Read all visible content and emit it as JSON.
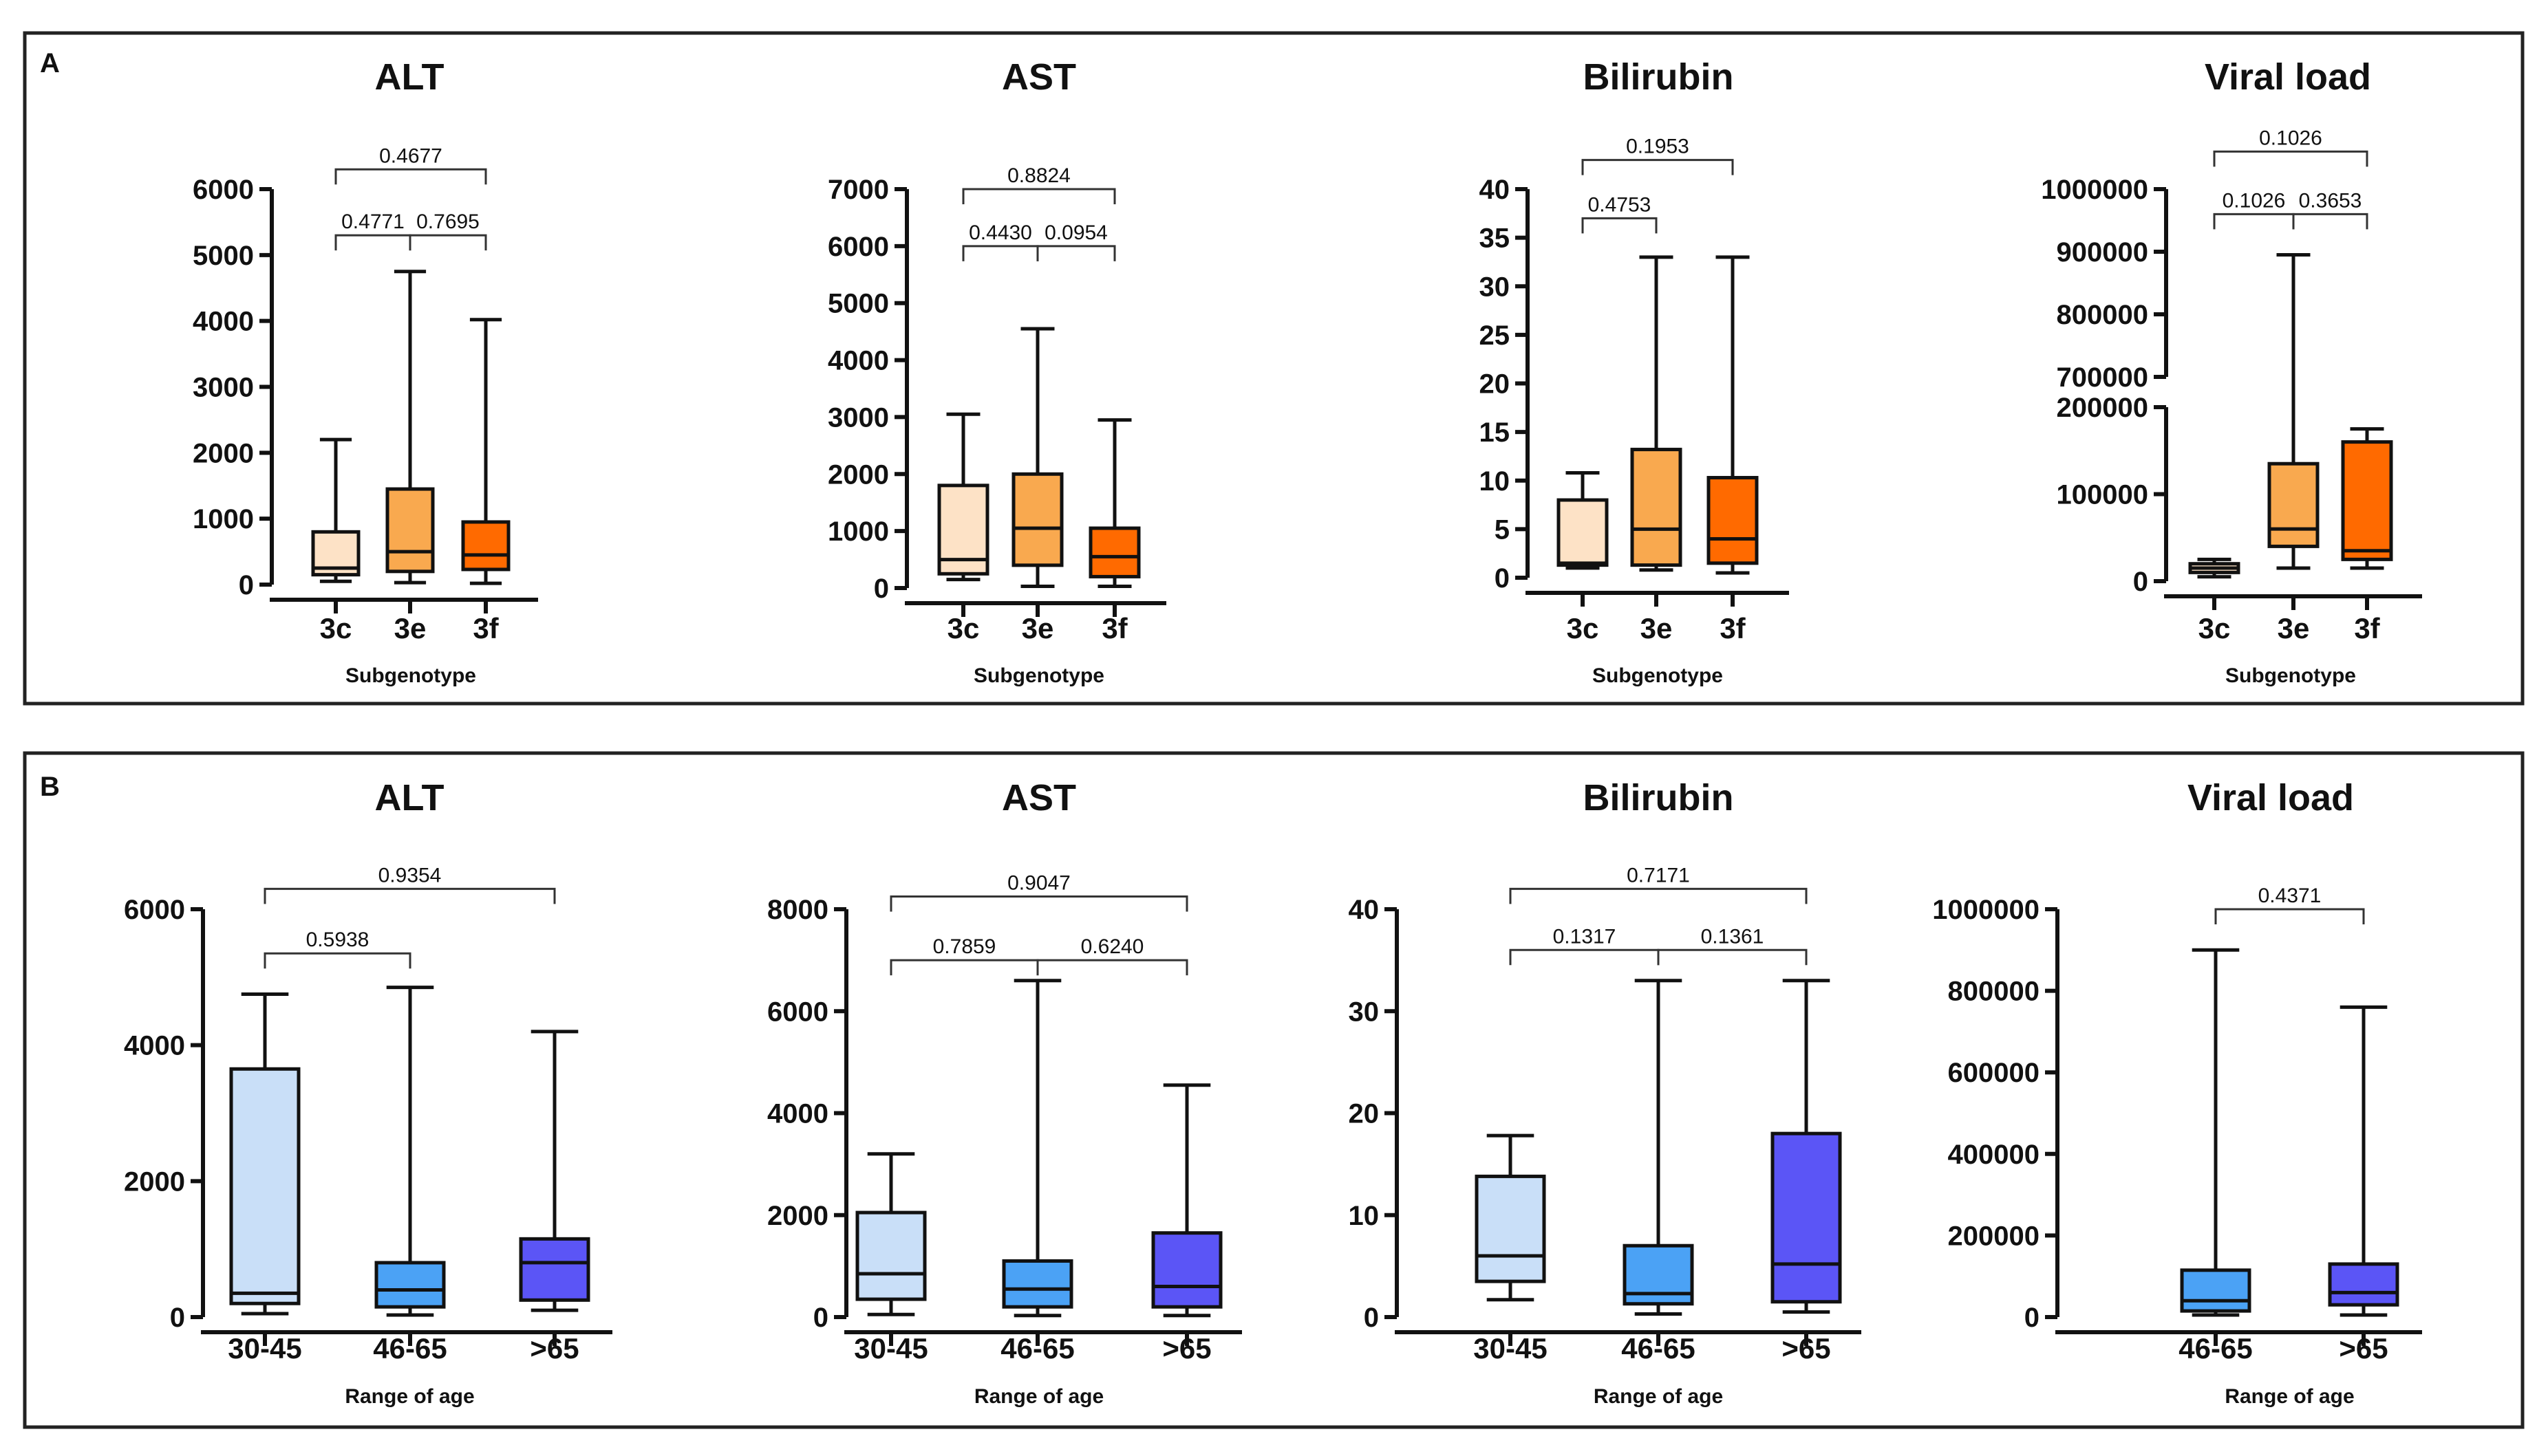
{
  "panels": [
    {
      "label": "A"
    },
    {
      "label": "B"
    }
  ],
  "chart_data": [
    {
      "panel": "A",
      "type": "box",
      "title": "ALT",
      "xlabel": "Subgenotype",
      "ylabel": "",
      "ylim": [
        0,
        6000
      ],
      "yticks": [
        0,
        1000,
        2000,
        3000,
        4000,
        5000,
        6000
      ],
      "yticklabels": [
        "0",
        "1000",
        "2000",
        "3000",
        "4000",
        "5000",
        "6000"
      ],
      "categories": [
        "3c",
        "3e",
        "3f"
      ],
      "colors": [
        "#FDE2C6",
        "#F9A94F",
        "#FF6A00"
      ],
      "boxes": [
        {
          "min": 50,
          "q1": 150,
          "median": 250,
          "q3": 800,
          "max": 2200
        },
        {
          "min": 30,
          "q1": 200,
          "median": 500,
          "q3": 1450,
          "max": 4750
        },
        {
          "min": 20,
          "q1": 230,
          "median": 450,
          "q3": 950,
          "max": 4020
        }
      ],
      "comparisons": [
        {
          "pair": [
            0,
            2
          ],
          "p": "0.4677",
          "value": 6300
        },
        {
          "pair": [
            0,
            1
          ],
          "p": "0.4771",
          "value": 5300
        },
        {
          "pair": [
            1,
            2
          ],
          "p": "0.7695",
          "value": 5300
        }
      ]
    },
    {
      "panel": "A",
      "type": "box",
      "title": "AST",
      "xlabel": "Subgenotype",
      "ylabel": "",
      "ylim": [
        0,
        7000
      ],
      "yticks": [
        0,
        1000,
        2000,
        3000,
        4000,
        5000,
        6000,
        7000
      ],
      "yticklabels": [
        "0",
        "1000",
        "2000",
        "3000",
        "4000",
        "5000",
        "6000",
        "7000"
      ],
      "categories": [
        "3c",
        "3e",
        "3f"
      ],
      "colors": [
        "#FDE2C6",
        "#F9A94F",
        "#FF6A00"
      ],
      "boxes": [
        {
          "min": 150,
          "q1": 250,
          "median": 500,
          "q3": 1800,
          "max": 3050
        },
        {
          "min": 30,
          "q1": 400,
          "median": 1050,
          "q3": 2000,
          "max": 4550
        },
        {
          "min": 30,
          "q1": 200,
          "median": 550,
          "q3": 1050,
          "max": 2950
        }
      ],
      "comparisons": [
        {
          "pair": [
            0,
            2
          ],
          "p": "0.8824",
          "value": 7000
        },
        {
          "pair": [
            0,
            1
          ],
          "p": "0.4430",
          "value": 6000
        },
        {
          "pair": [
            1,
            2
          ],
          "p": "0.0954",
          "value": 6000
        }
      ]
    },
    {
      "panel": "A",
      "type": "box",
      "title": "Bilirubin",
      "xlabel": "Subgenotype",
      "ylabel": "",
      "ylim": [
        0,
        40
      ],
      "yticks": [
        0,
        5,
        10,
        15,
        20,
        25,
        30,
        35,
        40
      ],
      "yticklabels": [
        "0",
        "5",
        "10",
        "15",
        "20",
        "25",
        "30",
        "35",
        "40"
      ],
      "categories": [
        "3c",
        "3e",
        "3f"
      ],
      "colors": [
        "#FDE2C6",
        "#F9A94F",
        "#FF6A00"
      ],
      "boxes": [
        {
          "min": 1,
          "q1": 1.3,
          "median": 1.5,
          "q3": 8,
          "max": 10.8
        },
        {
          "min": 0.8,
          "q1": 1.3,
          "median": 5,
          "q3": 13.2,
          "max": 33
        },
        {
          "min": 0.5,
          "q1": 1.5,
          "median": 4,
          "q3": 10.3,
          "max": 33
        }
      ],
      "comparisons": [
        {
          "pair": [
            0,
            2
          ],
          "p": "0.1953",
          "value": 43
        },
        {
          "pair": [
            0,
            1
          ],
          "p": "0.4753",
          "value": 37
        }
      ]
    },
    {
      "panel": "A",
      "type": "box",
      "title": "Viral load",
      "xlabel": "Subgenotype",
      "ylabel": "",
      "yaxis_break": {
        "lower": [
          0,
          200000
        ],
        "upper": [
          700000,
          1000000
        ]
      },
      "yticks": [
        0,
        100000,
        200000,
        700000,
        800000,
        900000,
        1000000
      ],
      "yticklabels": [
        "0",
        "100000",
        "200000",
        "700000",
        "800000",
        "900000",
        "1000000"
      ],
      "categories": [
        "3c",
        "3e",
        "3f"
      ],
      "colors": [
        "#FDE2C6",
        "#F9A94F",
        "#FF6A00"
      ],
      "boxes": [
        {
          "min": 5000,
          "q1": 10000,
          "median": 15000,
          "q3": 20000,
          "max": 25000
        },
        {
          "min": 15000,
          "q1": 40000,
          "median": 60000,
          "q3": 135000,
          "max": 895000
        },
        {
          "min": 15000,
          "q1": 25000,
          "median": 35000,
          "q3": 160000,
          "max": 175000
        }
      ],
      "comparisons": [
        {
          "pair": [
            0,
            2
          ],
          "p": "0.1026",
          "value": 1060000
        },
        {
          "pair": [
            0,
            1
          ],
          "p": "0.1026",
          "value": 960000
        },
        {
          "pair": [
            1,
            2
          ],
          "p": "0.3653",
          "value": 960000
        }
      ]
    },
    {
      "panel": "B",
      "type": "box",
      "title": "ALT",
      "xlabel": "Range of age",
      "ylabel": "",
      "ylim": [
        0,
        6000
      ],
      "yticks": [
        0,
        2000,
        4000,
        6000
      ],
      "yticklabels": [
        "0",
        "2000",
        "4000",
        "6000"
      ],
      "categories": [
        "30-45",
        "46-65",
        ">65"
      ],
      "colors": [
        "#C9DFF8",
        "#4BA2F5",
        "#5B55F6"
      ],
      "boxes": [
        {
          "min": 50,
          "q1": 200,
          "median": 350,
          "q3": 3650,
          "max": 4750
        },
        {
          "min": 30,
          "q1": 150,
          "median": 400,
          "q3": 800,
          "max": 4850
        },
        {
          "min": 100,
          "q1": 250,
          "median": 800,
          "q3": 1150,
          "max": 4200
        }
      ],
      "comparisons": [
        {
          "pair": [
            0,
            2
          ],
          "p": "0.9354",
          "value": 6300
        },
        {
          "pair": [
            0,
            1
          ],
          "p": "0.5938",
          "value": 5350
        }
      ]
    },
    {
      "panel": "B",
      "type": "box",
      "title": "AST",
      "xlabel": "Range of age",
      "ylabel": "",
      "ylim": [
        0,
        8000
      ],
      "yticks": [
        0,
        2000,
        4000,
        6000,
        8000
      ],
      "yticklabels": [
        "0",
        "2000",
        "4000",
        "6000",
        "8000"
      ],
      "categories": [
        "30-45",
        "46-65",
        ">65"
      ],
      "colors": [
        "#C9DFF8",
        "#4BA2F5",
        "#5B55F6"
      ],
      "boxes": [
        {
          "min": 50,
          "q1": 350,
          "median": 850,
          "q3": 2050,
          "max": 3200
        },
        {
          "min": 30,
          "q1": 200,
          "median": 550,
          "q3": 1100,
          "max": 6600
        },
        {
          "min": 30,
          "q1": 200,
          "median": 600,
          "q3": 1650,
          "max": 4550
        }
      ],
      "comparisons": [
        {
          "pair": [
            0,
            2
          ],
          "p": "0.9047",
          "value": 8250
        },
        {
          "pair": [
            0,
            1
          ],
          "p": "0.7859",
          "value": 7000
        },
        {
          "pair": [
            1,
            2
          ],
          "p": "0.6240",
          "value": 7000
        }
      ]
    },
    {
      "panel": "B",
      "type": "box",
      "title": "Bilirubin",
      "xlabel": "Range of age",
      "ylabel": "",
      "ylim": [
        0,
        40
      ],
      "yticks": [
        0,
        10,
        20,
        30,
        40
      ],
      "yticklabels": [
        "0",
        "10",
        "20",
        "30",
        "40"
      ],
      "categories": [
        "30-45",
        "46-65",
        ">65"
      ],
      "colors": [
        "#C9DFF8",
        "#4BA2F5",
        "#5B55F6"
      ],
      "boxes": [
        {
          "min": 1.7,
          "q1": 3.5,
          "median": 6,
          "q3": 13.8,
          "max": 17.8
        },
        {
          "min": 0.3,
          "q1": 1.3,
          "median": 2.3,
          "q3": 7,
          "max": 33
        },
        {
          "min": 0.5,
          "q1": 1.5,
          "median": 5.2,
          "q3": 18,
          "max": 33
        }
      ],
      "comparisons": [
        {
          "pair": [
            0,
            2
          ],
          "p": "0.7171",
          "value": 42
        },
        {
          "pair": [
            0,
            1
          ],
          "p": "0.1317",
          "value": 36
        },
        {
          "pair": [
            1,
            2
          ],
          "p": "0.1361",
          "value": 36
        }
      ]
    },
    {
      "panel": "B",
      "type": "box",
      "title": "Viral load",
      "xlabel": "Range of age",
      "ylabel": "",
      "ylim": [
        0,
        1000000
      ],
      "yticks": [
        0,
        200000,
        400000,
        600000,
        800000,
        1000000
      ],
      "yticklabels": [
        "0",
        "200000",
        "400000",
        "600000",
        "800000",
        "1000000"
      ],
      "categories": [
        "46-65",
        ">65"
      ],
      "colors": [
        "#4BA2F5",
        "#5B55F6"
      ],
      "boxes": [
        {
          "min": 5000,
          "q1": 15000,
          "median": 40000,
          "q3": 115000,
          "max": 900000
        },
        {
          "min": 5000,
          "q1": 30000,
          "median": 60000,
          "q3": 130000,
          "max": 760000
        }
      ],
      "comparisons": [
        {
          "pair": [
            0,
            1
          ],
          "p": "0.4371",
          "value": 1000000
        }
      ]
    }
  ]
}
